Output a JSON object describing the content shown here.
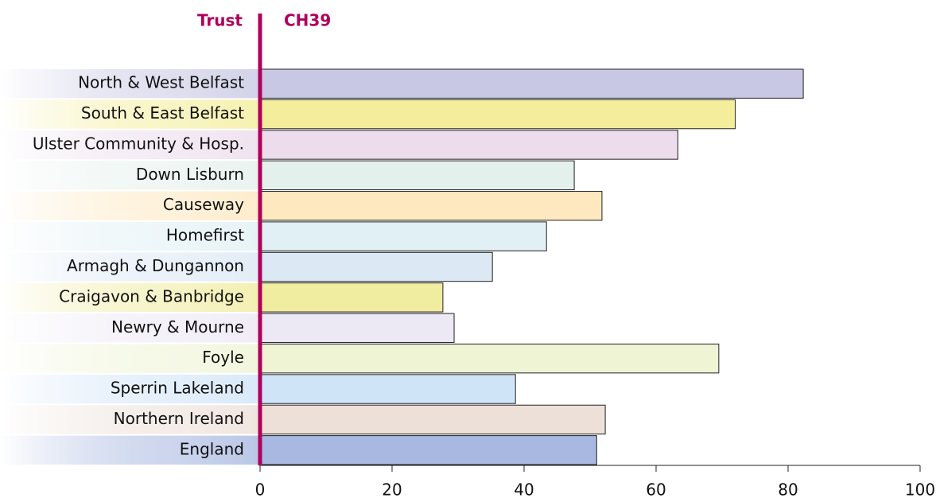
{
  "chart_data": {
    "type": "barh",
    "title": "CH39",
    "category_header": "Trust",
    "categories": [
      "North & West Belfast",
      "South & East Belfast",
      "Ulster Community & Hosp.",
      "Down Lisburn",
      "Causeway",
      "Homefirst",
      "Armagh & Dungannon",
      "Craigavon & Banbridge",
      "Newry & Mourne",
      "Foyle",
      "Sperrin Lakeland",
      "Northern Ireland",
      "England"
    ],
    "values": [
      82.3,
      72,
      63.3,
      47.6,
      51.8,
      43.4,
      35.2,
      27.7,
      29.4,
      69.5,
      38.7,
      52.3,
      51
    ],
    "colors": [
      "#c8c8e4",
      "#f4ee9c",
      "#ecdcec",
      "#e4f0ec",
      "#fde8c0",
      "#e0f0f4",
      "#dce8f4",
      "#f0eca0",
      "#ece8f4",
      "#eef4d4",
      "#d0e4f8",
      "#ece0d8",
      "#a8b8e0"
    ],
    "xlim": [
      0,
      100
    ],
    "xticks": [
      0,
      20,
      40,
      60,
      80,
      100
    ],
    "grid": false
  }
}
